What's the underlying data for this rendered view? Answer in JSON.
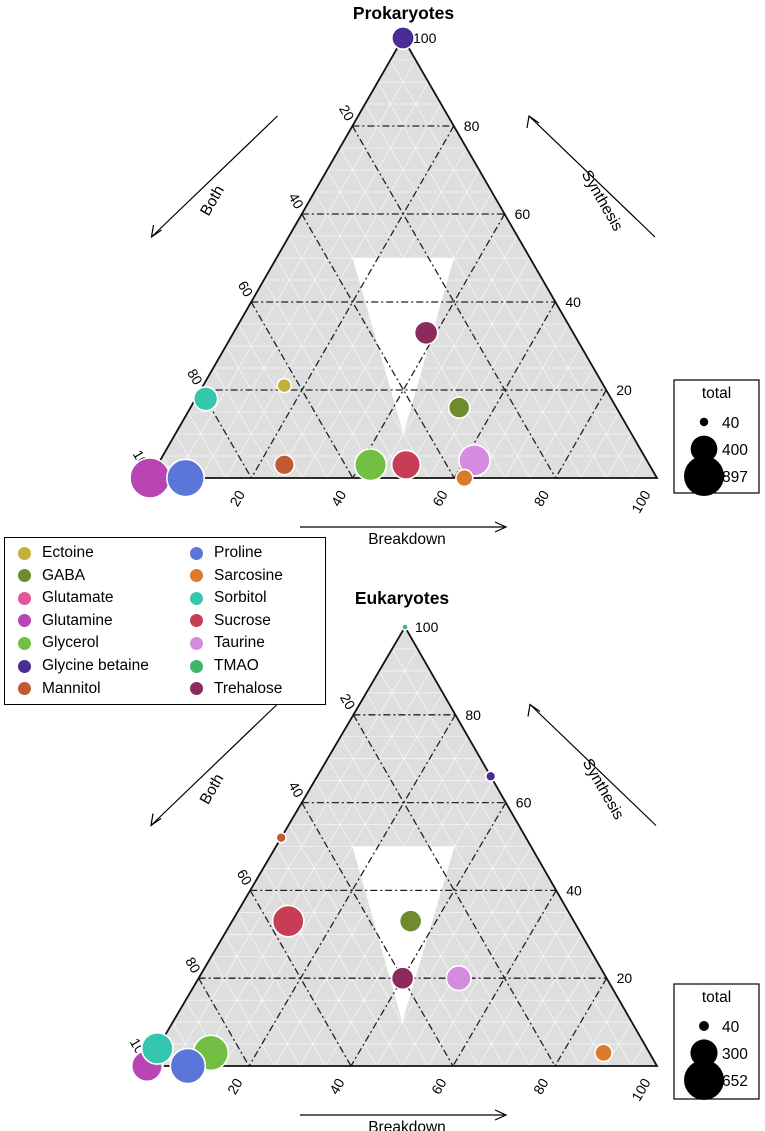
{
  "legend": {
    "items": [
      {
        "label": "Ectoine",
        "color": "#c2b03c"
      },
      {
        "label": "GABA",
        "color": "#6e8b2e"
      },
      {
        "label": "Glutamate",
        "color": "#e0569a"
      },
      {
        "label": "Glutamine",
        "color": "#b944b3"
      },
      {
        "label": "Glycerol",
        "color": "#72c043"
      },
      {
        "label": "Glycine betaine",
        "color": "#4b2c93"
      },
      {
        "label": "Mannitol",
        "color": "#c05a34"
      },
      {
        "label": "Proline",
        "color": "#5a76d9"
      },
      {
        "label": "Sarcosine",
        "color": "#d97b2a"
      },
      {
        "label": "Sorbitol",
        "color": "#35c7ae"
      },
      {
        "label": "Sucrose",
        "color": "#c73d55"
      },
      {
        "label": "Taurine",
        "color": "#d58ce0"
      },
      {
        "label": "TMAO",
        "color": "#3fb56d"
      },
      {
        "label": "Trehalose",
        "color": "#8c2a5e"
      }
    ]
  },
  "chart_data": [
    {
      "type": "ternary-scatter",
      "title": "Prokaryotes",
      "axes": {
        "left": "Both",
        "right": "Synthesis",
        "bottom": "Breakdown"
      },
      "ticks": [
        "20",
        "40",
        "60",
        "80",
        "100"
      ],
      "size_legend": {
        "title": "total",
        "entries": [
          {
            "label": "40",
            "value": 40
          },
          {
            "label": "400",
            "value": 400
          },
          {
            "label": "897",
            "value": 897
          }
        ]
      },
      "points": [
        {
          "name": "Glycine betaine",
          "synthesis": 100,
          "both": 0,
          "breakdown": 0,
          "total": 280
        },
        {
          "name": "Trehalose",
          "synthesis": 33,
          "both": 29,
          "breakdown": 38,
          "total": 300
        },
        {
          "name": "GABA",
          "synthesis": 16,
          "both": 31,
          "breakdown": 53,
          "total": 250
        },
        {
          "name": "Ectoine",
          "synthesis": 21,
          "both": 63,
          "breakdown": 16,
          "total": 110
        },
        {
          "name": "Sorbitol",
          "synthesis": 18,
          "both": 80,
          "breakdown": 2,
          "total": 320
        },
        {
          "name": "Glutamine",
          "synthesis": 0,
          "both": 100,
          "breakdown": 0,
          "total": 897
        },
        {
          "name": "Proline",
          "synthesis": 0,
          "both": 93,
          "breakdown": 7,
          "total": 780
        },
        {
          "name": "Mannitol",
          "synthesis": 3,
          "both": 72,
          "breakdown": 25,
          "total": 220
        },
        {
          "name": "Glycerol",
          "synthesis": 3,
          "both": 55,
          "breakdown": 42,
          "total": 560
        },
        {
          "name": "Sucrose",
          "synthesis": 3,
          "both": 48,
          "breakdown": 49,
          "total": 460
        },
        {
          "name": "Taurine",
          "synthesis": 4,
          "both": 34,
          "breakdown": 62,
          "total": 540
        },
        {
          "name": "Sarcosine",
          "synthesis": 0,
          "both": 38,
          "breakdown": 62,
          "total": 160
        }
      ]
    },
    {
      "type": "ternary-scatter",
      "title": "Eukaryotes",
      "axes": {
        "left": "Both",
        "right": "Synthesis",
        "bottom": "Breakdown"
      },
      "ticks": [
        "20",
        "40",
        "60",
        "80",
        "100"
      ],
      "size_legend": {
        "title": "total",
        "entries": [
          {
            "label": "40",
            "value": 40
          },
          {
            "label": "300",
            "value": 300
          },
          {
            "label": "652",
            "value": 652
          }
        ]
      },
      "points": [
        {
          "name": "TMAO",
          "synthesis": 100,
          "both": 0,
          "breakdown": 0,
          "total": 15
        },
        {
          "name": "Glycine betaine",
          "synthesis": 66,
          "both": 0,
          "breakdown": 34,
          "total": 40
        },
        {
          "name": "Mannitol",
          "synthesis": 52,
          "both": 48,
          "breakdown": 0,
          "total": 40
        },
        {
          "name": "Sucrose",
          "synthesis": 33,
          "both": 56,
          "breakdown": 11,
          "total": 400
        },
        {
          "name": "GABA",
          "synthesis": 33,
          "both": 32,
          "breakdown": 35,
          "total": 200
        },
        {
          "name": "Trehalose",
          "synthesis": 20,
          "both": 40,
          "breakdown": 40,
          "total": 200
        },
        {
          "name": "Taurine",
          "synthesis": 20,
          "both": 29,
          "breakdown": 51,
          "total": 250
        },
        {
          "name": "Sarcosine",
          "synthesis": 3,
          "both": 9,
          "breakdown": 88,
          "total": 120
        },
        {
          "name": "Glutamate",
          "synthesis": 0,
          "both": 100,
          "breakdown": 0,
          "total": 420
        },
        {
          "name": "Glutamine",
          "synthesis": 0,
          "both": 100,
          "breakdown": 0,
          "total": 380
        },
        {
          "name": "Sorbitol",
          "synthesis": 4,
          "both": 96,
          "breakdown": 0,
          "total": 400
        },
        {
          "name": "Glycerol",
          "synthesis": 3,
          "both": 86,
          "breakdown": 11,
          "total": 500
        },
        {
          "name": "Proline",
          "synthesis": 0,
          "both": 92,
          "breakdown": 8,
          "total": 500
        }
      ]
    }
  ]
}
